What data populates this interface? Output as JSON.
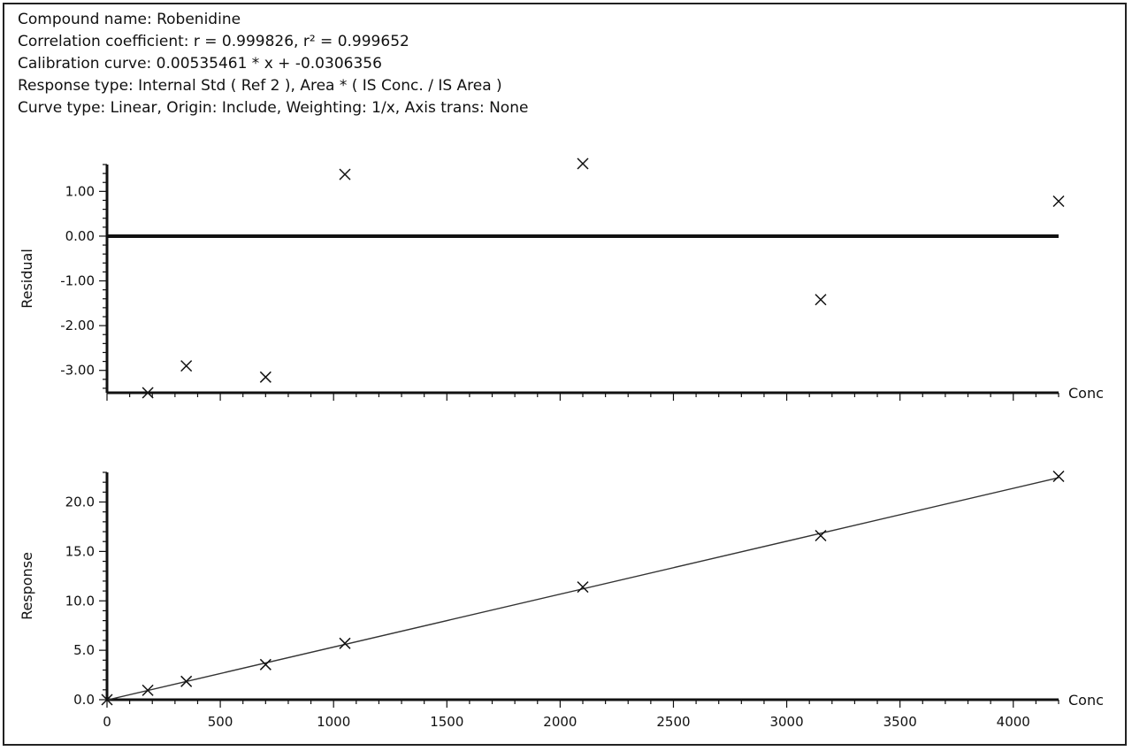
{
  "info": {
    "compound": "Compound name: Robenidine",
    "correlation": "Correlation coefficient: r = 0.999826, r² = 0.999652",
    "calibration": "Calibration curve: 0.00535461 * x + -0.0306356",
    "response_type": "Response type: Internal Std ( Ref 2 ), Area * ( IS Conc. / IS Area )",
    "curve_type": "Curve type: Linear, Origin: Include, Weighting: 1/x, Axis trans: None"
  },
  "chart_data": [
    {
      "type": "scatter",
      "ylabel": "Residual",
      "xlabel": "Conc",
      "xlim": [
        0,
        4200
      ],
      "ylim": [
        -3.5,
        1.6
      ],
      "x_ticks": [],
      "y_ticks": [
        -3,
        -2,
        -1,
        0,
        1
      ],
      "y_tick_labels": [
        "-3.00",
        "-2.00",
        "-1.00",
        "0.00",
        "1.00"
      ],
      "reference_line_y": 0,
      "points": [
        {
          "x": 180,
          "y": -3.5
        },
        {
          "x": 350,
          "y": -2.9
        },
        {
          "x": 700,
          "y": -3.15
        },
        {
          "x": 1050,
          "y": 1.38
        },
        {
          "x": 2100,
          "y": 1.62
        },
        {
          "x": 3150,
          "y": -1.42
        },
        {
          "x": 4200,
          "y": 0.78
        }
      ]
    },
    {
      "type": "scatter",
      "ylabel": "Response",
      "xlabel": "Conc",
      "xlim": [
        0,
        4200
      ],
      "ylim": [
        0,
        23
      ],
      "x_ticks": [
        0,
        500,
        1000,
        1500,
        2000,
        2500,
        3000,
        3500,
        4000
      ],
      "x_tick_labels": [
        "0",
        "500",
        "1000",
        "1500",
        "2000",
        "2500",
        "3000",
        "3500",
        "4000"
      ],
      "y_ticks": [
        0,
        5,
        10,
        15,
        20
      ],
      "y_tick_labels": [
        "0.0",
        "5.0",
        "10.0",
        "15.0",
        "20.0"
      ],
      "fit_line": {
        "slope": 0.00535461,
        "intercept": -0.0306356
      },
      "points": [
        {
          "x": 0,
          "y": 0
        },
        {
          "x": 180,
          "y": 0.95
        },
        {
          "x": 350,
          "y": 1.85
        },
        {
          "x": 700,
          "y": 3.55
        },
        {
          "x": 1050,
          "y": 5.7
        },
        {
          "x": 2100,
          "y": 11.4
        },
        {
          "x": 3150,
          "y": 16.6
        },
        {
          "x": 4200,
          "y": 22.6
        }
      ]
    }
  ]
}
